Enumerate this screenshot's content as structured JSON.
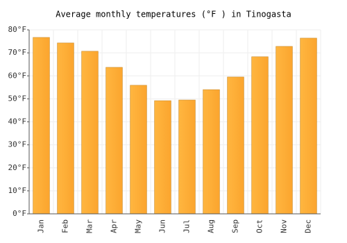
{
  "chart_data": {
    "type": "bar",
    "title": "Average monthly temperatures (°F ) in Tinogasta",
    "categories": [
      "Jan",
      "Feb",
      "Mar",
      "Apr",
      "May",
      "Jun",
      "Jul",
      "Aug",
      "Sep",
      "Oct",
      "Nov",
      "Dec"
    ],
    "values": [
      76.7,
      74.3,
      70.7,
      63.7,
      55.9,
      49.2,
      49.5,
      54,
      59.5,
      68.3,
      72.8,
      76.4
    ],
    "color": "#fba52e",
    "ylim": [
      0,
      80
    ],
    "yticks": [
      {
        "value": 0,
        "label": "0°F"
      },
      {
        "value": 10,
        "label": "10°F"
      },
      {
        "value": 20,
        "label": "20°F"
      },
      {
        "value": 30,
        "label": "30°F"
      },
      {
        "value": 40,
        "label": "40°F"
      },
      {
        "value": 50,
        "label": "50°F"
      },
      {
        "value": 60,
        "label": "60°F"
      },
      {
        "value": 70,
        "label": "70°F"
      },
      {
        "value": 80,
        "label": "80°F"
      }
    ],
    "grid": true
  }
}
